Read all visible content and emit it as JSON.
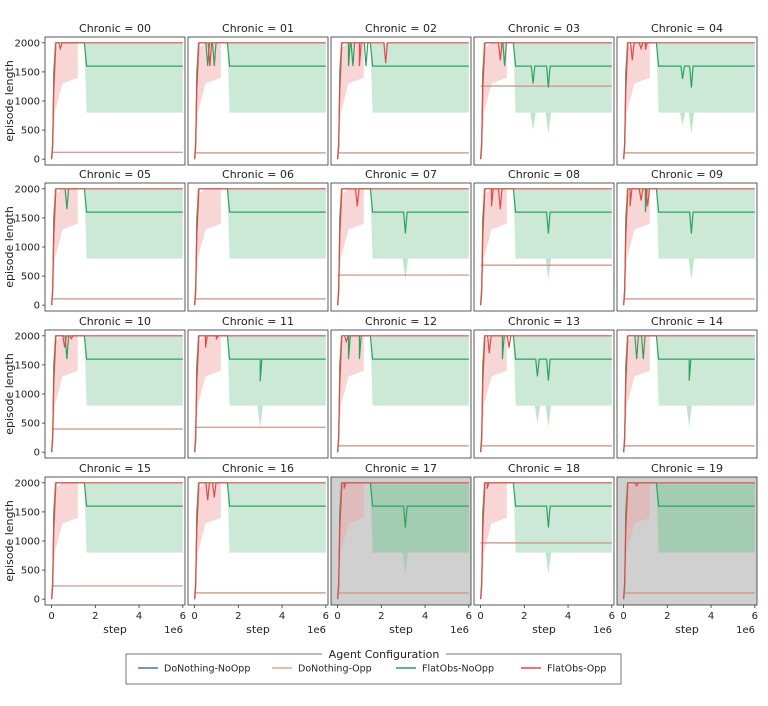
{
  "chart_data": {
    "type": "line",
    "facet_label": "Chronic",
    "panel_titles": [
      "Chronic = 00",
      "Chronic = 01",
      "Chronic = 02",
      "Chronic = 03",
      "Chronic = 04",
      "Chronic = 05",
      "Chronic = 06",
      "Chronic = 07",
      "Chronic = 08",
      "Chronic = 09",
      "Chronic = 10",
      "Chronic = 11",
      "Chronic = 12",
      "Chronic = 13",
      "Chronic = 14",
      "Chronic = 15",
      "Chronic = 16",
      "Chronic = 17",
      "Chronic = 18",
      "Chronic = 19"
    ],
    "shaded_panels": [
      17,
      19
    ],
    "xlabel": "step",
    "x_offset_label": "1e6",
    "ylabel": "episode length",
    "xlim": [
      -0.3,
      6.1
    ],
    "ylim": [
      -100,
      2100
    ],
    "xticks": [
      0,
      2,
      4,
      6
    ],
    "xtick_labels": [
      "0",
      "2",
      "4",
      "6"
    ],
    "yticks": [
      0,
      500,
      1000,
      1500,
      2000
    ],
    "ytick_labels": [
      "0",
      "500",
      "1000",
      "1500",
      "2000"
    ],
    "legend": {
      "title": "Agent Configuration",
      "placement": "bottom-center",
      "entries": [
        "DoNothing-NoOpp",
        "DoNothing-Opp",
        "FlatObs-NoOpp",
        "FlatObs-Opp"
      ]
    },
    "series_colors": {
      "DoNothing-NoOpp": "#4c72b0",
      "DoNothing-Opp": "#f0a07c",
      "FlatObs-NoOpp": "#2ca25f",
      "FlatObs-Opp": "#e34a4a",
      "FlatObs-NoOpp-band": "#7fc99a",
      "FlatObs-Opp-band": "#f2a5a5",
      "shaded_panel_bg": "#d0d0d0"
    },
    "donothing_opp_levels": [
      120,
      110,
      110,
      1260,
      110,
      110,
      110,
      520,
      690,
      110,
      400,
      430,
      110,
      110,
      110,
      230,
      110,
      110,
      970,
      110
    ],
    "flatobs_noopp": {
      "x": [
        0,
        0.05,
        0.1,
        0.2,
        0.3,
        0.5,
        0.8,
        1.0,
        1.2,
        1.5,
        1.6,
        2.0,
        3.0,
        4.0,
        5.0,
        6.0
      ],
      "y": [
        0,
        200,
        1500,
        2000,
        2000,
        2000,
        2000,
        2000,
        2000,
        2000,
        1600,
        1600,
        1600,
        1600,
        1600,
        1600
      ],
      "band_low": [
        0,
        50,
        800,
        2000,
        2000,
        2000,
        2000,
        2000,
        2000,
        2000,
        800,
        800,
        800,
        800,
        800,
        800
      ],
      "band_high": [
        0,
        400,
        2000,
        2000,
        2000,
        2000,
        2000,
        2000,
        2000,
        2000,
        2000,
        2000,
        2000,
        2000,
        2000,
        2000
      ]
    },
    "flatobs_opp": {
      "x": [
        0,
        0.05,
        0.1,
        0.2,
        0.3,
        0.5,
        1.0,
        2.0,
        3.0,
        4.0,
        5.0,
        6.0
      ],
      "y": [
        0,
        300,
        1200,
        2000,
        2000,
        2000,
        2000,
        2000,
        2000,
        2000,
        2000,
        2000
      ]
    }
  }
}
